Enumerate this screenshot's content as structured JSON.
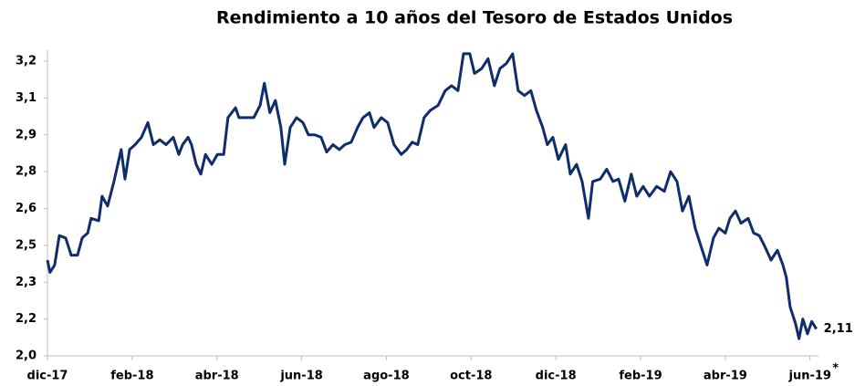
{
  "chart_data": {
    "type": "line",
    "title": "Rendimiento a 10 años del Tesoro de Estados Unidos",
    "x": [
      0,
      0.06,
      0.17,
      0.28,
      0.43,
      0.56,
      0.71,
      0.82,
      0.95,
      1.03,
      1.21,
      1.29,
      1.42,
      1.57,
      1.74,
      1.83,
      1.94,
      2.07,
      2.22,
      2.37,
      2.5,
      2.65,
      2.8,
      2.97,
      3.1,
      3.19,
      3.32,
      3.4,
      3.51,
      3.62,
      3.73,
      3.88,
      4.01,
      4.16,
      4.26,
      4.44,
      4.52,
      4.69,
      4.87,
      5.02,
      5.12,
      5.25,
      5.38,
      5.51,
      5.6,
      5.73,
      5.88,
      6.03,
      6.16,
      6.31,
      6.46,
      6.59,
      6.74,
      6.89,
      7.02,
      7.17,
      7.32,
      7.45,
      7.6,
      7.71,
      7.88,
      8.03,
      8.18,
      8.35,
      8.48,
      8.61,
      8.74,
      8.89,
      9.04,
      9.22,
      9.39,
      9.54,
      9.69,
      9.82,
      9.97,
      10.08,
      10.25,
      10.4,
      10.55,
      10.68,
      10.83,
      10.98,
      11.11,
      11.26,
      11.41,
      11.54,
      11.69,
      11.8,
      11.93,
      12.06,
      12.23,
      12.34,
      12.49,
      12.62,
      12.77,
      12.87,
      13.05,
      13.2,
      13.35,
      13.48,
      13.63,
      13.78,
      13.91,
      14.06,
      14.21,
      14.38,
      14.56,
      14.71,
      14.86,
      14.99,
      15.14,
      15.29,
      15.42,
      15.57,
      15.72,
      15.85,
      16.0,
      16.11,
      16.24,
      16.37,
      16.54,
      16.67,
      16.8,
      16.92,
      17.08,
      17.23,
      17.36,
      17.44,
      17.53,
      17.66,
      17.74,
      17.83,
      17.94,
      18.04,
      18.15
    ],
    "series": [
      {
        "color": "#0f2d6b",
        "values": [
          2.39,
          2.34,
          2.37,
          2.49,
          2.48,
          2.41,
          2.41,
          2.48,
          2.5,
          2.56,
          2.55,
          2.65,
          2.61,
          2.71,
          2.84,
          2.72,
          2.84,
          2.86,
          2.89,
          2.95,
          2.86,
          2.88,
          2.86,
          2.89,
          2.82,
          2.86,
          2.89,
          2.86,
          2.78,
          2.74,
          2.82,
          2.78,
          2.82,
          2.82,
          2.97,
          3.01,
          2.97,
          2.97,
          2.97,
          3.02,
          3.11,
          2.99,
          3.04,
          2.93,
          2.78,
          2.93,
          2.97,
          2.95,
          2.9,
          2.9,
          2.89,
          2.83,
          2.86,
          2.84,
          2.86,
          2.87,
          2.93,
          2.97,
          2.99,
          2.93,
          2.97,
          2.95,
          2.86,
          2.82,
          2.84,
          2.87,
          2.86,
          2.97,
          3.0,
          3.02,
          3.08,
          3.1,
          3.08,
          3.23,
          3.23,
          3.15,
          3.17,
          3.21,
          3.1,
          3.17,
          3.19,
          3.23,
          3.08,
          3.06,
          3.08,
          3.0,
          2.93,
          2.86,
          2.89,
          2.8,
          2.86,
          2.74,
          2.78,
          2.71,
          2.56,
          2.71,
          2.72,
          2.76,
          2.71,
          2.72,
          2.63,
          2.74,
          2.65,
          2.69,
          2.65,
          2.69,
          2.67,
          2.75,
          2.71,
          2.59,
          2.65,
          2.52,
          2.45,
          2.37,
          2.48,
          2.52,
          2.5,
          2.56,
          2.59,
          2.54,
          2.56,
          2.5,
          2.49,
          2.45,
          2.39,
          2.43,
          2.37,
          2.32,
          2.2,
          2.13,
          2.07,
          2.15,
          2.09,
          2.14,
          2.11
        ],
        "value_labels": [
          null,
          null,
          null,
          null,
          null,
          null,
          null,
          null,
          null,
          null,
          null,
          null,
          null,
          null,
          null,
          null,
          null,
          null,
          null,
          null,
          null,
          null,
          null,
          null,
          null,
          null,
          null,
          null,
          null,
          null,
          null,
          null,
          null,
          null,
          null,
          null,
          null,
          null,
          null,
          null,
          null,
          null,
          null,
          null,
          null,
          null,
          null,
          null,
          null,
          null,
          null,
          null,
          null,
          null,
          null,
          null,
          null,
          null,
          null,
          null,
          null,
          null,
          null,
          null,
          null,
          null,
          null,
          null,
          null,
          null,
          null,
          null,
          null,
          null,
          null,
          null,
          null,
          null,
          null,
          null,
          null,
          null,
          null,
          null,
          null,
          null,
          null,
          null,
          null,
          null,
          null,
          null,
          null,
          null,
          null,
          null,
          null,
          null,
          null,
          null,
          null,
          null,
          null,
          null,
          null,
          null,
          null,
          null,
          null,
          null,
          null,
          null,
          null,
          null,
          null,
          null,
          null,
          null,
          null,
          null,
          null,
          null,
          null,
          null,
          null,
          null,
          null,
          null,
          null,
          null,
          null,
          null,
          null,
          null,
          "2,11"
        ]
      }
    ],
    "xlim": [
      0,
      18.2
    ],
    "xticks": [
      {
        "value": 0,
        "label": "dic-17"
      },
      {
        "value": 2,
        "label": "feb-18"
      },
      {
        "value": 4,
        "label": "abr-18"
      },
      {
        "value": 6,
        "label": "jun-18"
      },
      {
        "value": 8,
        "label": "ago-18"
      },
      {
        "value": 10,
        "label": "oct-18"
      },
      {
        "value": 12,
        "label": "dic-18"
      },
      {
        "value": 14,
        "label": "feb-19"
      },
      {
        "value": 16,
        "label": "abr-19"
      },
      {
        "value": 18,
        "label": "jun-19"
      }
    ],
    "x_annotation": "*",
    "ylim": [
      2.0,
      3.2
    ],
    "yticks": [
      {
        "value": 2.0,
        "label": "2,0"
      },
      {
        "value": 2.15,
        "label": "2,2"
      },
      {
        "value": 2.3,
        "label": "2,3"
      },
      {
        "value": 2.45,
        "label": "2,5"
      },
      {
        "value": 2.6,
        "label": "2,6"
      },
      {
        "value": 2.75,
        "label": "2,8"
      },
      {
        "value": 2.9,
        "label": "2,9"
      },
      {
        "value": 3.05,
        "label": "3,1"
      },
      {
        "value": 3.2,
        "label": "3,2"
      }
    ],
    "grid": false
  }
}
